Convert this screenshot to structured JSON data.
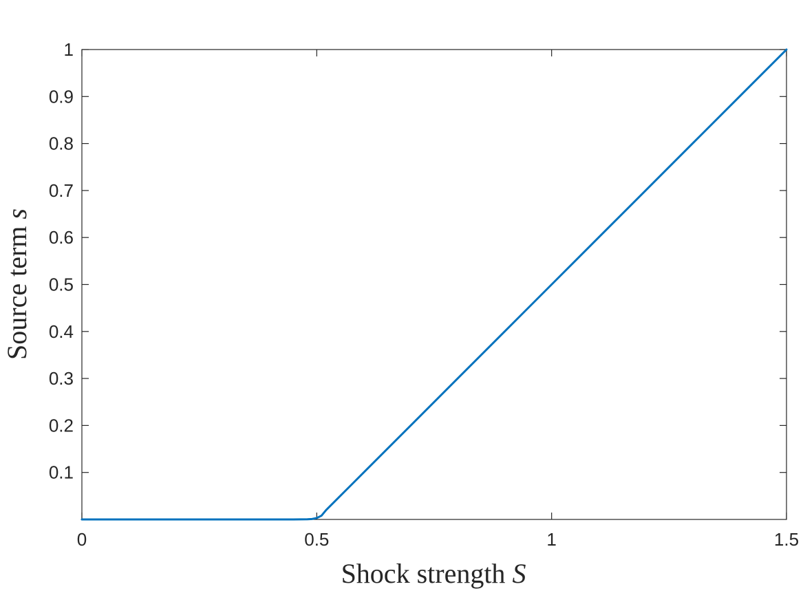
{
  "chart_data": {
    "type": "line",
    "title": "",
    "xlabel": "Shock strength",
    "xlabel_symbol": "S",
    "ylabel": "Source term",
    "ylabel_symbol": "s",
    "xlim": [
      0,
      1.5
    ],
    "ylim": [
      0,
      1
    ],
    "xticks": [
      0,
      0.5,
      1,
      1.5
    ],
    "xtick_labels": [
      "0",
      "0.5",
      "1",
      "1.5"
    ],
    "yticks": [
      0.1,
      0.2,
      0.3,
      0.4,
      0.5,
      0.6,
      0.7,
      0.8,
      0.9,
      1
    ],
    "ytick_labels": [
      "0.1",
      "0.2",
      "0.3",
      "0.4",
      "0.5",
      "0.6",
      "0.7",
      "0.8",
      "0.9",
      "1"
    ],
    "grid": false,
    "box": true,
    "series": [
      {
        "color": "#0072BD",
        "x": [
          0,
          0.1,
          0.2,
          0.3,
          0.4,
          0.45,
          0.48,
          0.49,
          0.5,
          0.51,
          0.52,
          0.55,
          0.6,
          0.7,
          0.8,
          0.9,
          1.0,
          1.1,
          1.2,
          1.3,
          1.4,
          1.5
        ],
        "y": [
          0,
          0,
          0,
          0,
          0,
          0,
          0.0003,
          0.001,
          0.003,
          0.008,
          0.02,
          0.05,
          0.1,
          0.2,
          0.3,
          0.4,
          0.5,
          0.6,
          0.7,
          0.8,
          0.9,
          1.0
        ]
      }
    ]
  }
}
